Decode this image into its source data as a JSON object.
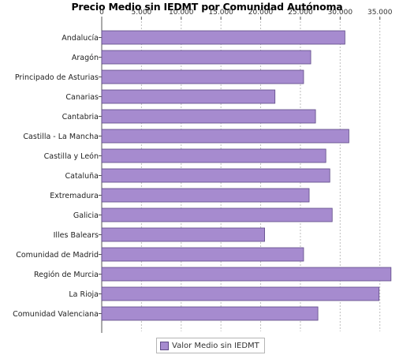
{
  "chart_data": {
    "type": "bar",
    "orientation": "horizontal",
    "title": "Precio Medio sin IEDMT por Comunidad Autónoma",
    "xlabel": "",
    "ylabel": "",
    "xlim": [
      0,
      38500
    ],
    "x_ticks": [
      0,
      5000,
      10000,
      15000,
      20000,
      25000,
      30000,
      35000
    ],
    "x_tick_labels": [
      "0",
      "5.000",
      "10.000",
      "15.000",
      "20.000",
      "25.000",
      "30.000",
      "35.000"
    ],
    "tick_position": "top",
    "grid": true,
    "legend_position": "bottom",
    "categories": [
      "Andalucía",
      "Aragón",
      "Principado de Asturias",
      "Canarias",
      "Cantabria",
      "Castilla - La Mancha",
      "Castilla y León",
      "Cataluña",
      "Extremadura",
      "Galicia",
      "Illes Balears",
      "Comunidad de Madrid",
      "Región de Murcia",
      "La Rioja",
      "Comunidad Valenciana"
    ],
    "series": [
      {
        "name": "Valor Medio sin IEDMT",
        "color": "#a68bcf",
        "values": [
          30600,
          26300,
          25400,
          21800,
          26900,
          31100,
          28200,
          28700,
          26100,
          29000,
          20500,
          25400,
          36400,
          34900,
          27200
        ]
      }
    ]
  }
}
